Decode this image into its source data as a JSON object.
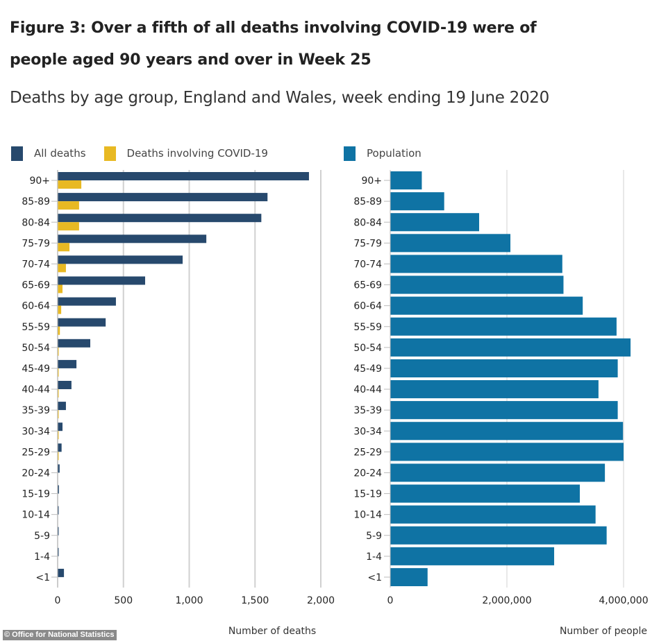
{
  "title_line1": "Figure 3: Over a fifth of all deaths involving COVID-19 were of",
  "title_line2": "people aged 90 years and over in Week 25",
  "subtitle": "Deaths by age group, England and Wales, week ending 19 June 2020",
  "footer": "© Office for National Statistics",
  "colors": {
    "all_deaths": "#27496d",
    "covid_deaths": "#e8b923",
    "population": "#0f73a4",
    "grid": "#d0d0d0"
  },
  "chart_data": [
    {
      "type": "bar",
      "orientation": "horizontal",
      "title": "Deaths by age group",
      "xlabel": "Number of deaths",
      "ylabel": "",
      "xlim": [
        0,
        2000
      ],
      "xticks": [
        0,
        500,
        1000,
        1500,
        2000
      ],
      "xtick_labels": [
        "0",
        "500",
        "1,000",
        "1,500",
        "2,000"
      ],
      "grid": true,
      "legend_position": "top-left",
      "categories": [
        "90+",
        "85-89",
        "80-84",
        "75-79",
        "70-74",
        "65-69",
        "60-64",
        "55-59",
        "50-54",
        "45-49",
        "40-44",
        "35-39",
        "30-34",
        "25-29",
        "20-24",
        "15-19",
        "10-14",
        "5-9",
        "1-4",
        "<1"
      ],
      "series": [
        {
          "name": "All deaths",
          "color": "#27496d",
          "values": [
            1910,
            1595,
            1548,
            1130,
            950,
            665,
            443,
            365,
            248,
            143,
            105,
            63,
            37,
            30,
            15,
            10,
            4,
            4,
            8,
            48
          ]
        },
        {
          "name": "Deaths involving COVID-19",
          "color": "#e8b923",
          "values": [
            180,
            163,
            163,
            90,
            63,
            37,
            27,
            17,
            8,
            4,
            3,
            2,
            1,
            1,
            0,
            0,
            0,
            0,
            0,
            0
          ]
        }
      ]
    },
    {
      "type": "bar",
      "orientation": "horizontal",
      "title": "Population by age group",
      "xlabel": "Number of people",
      "ylabel": "",
      "xlim": [
        0,
        4000000
      ],
      "xticks": [
        0,
        2000000,
        4000000
      ],
      "xtick_labels": [
        "0",
        "2,000,000",
        "4,000,000"
      ],
      "grid": true,
      "legend_position": "top-left",
      "categories": [
        "90+",
        "85-89",
        "80-84",
        "75-79",
        "70-74",
        "65-69",
        "60-64",
        "55-59",
        "50-54",
        "45-49",
        "40-44",
        "35-39",
        "30-34",
        "25-29",
        "20-24",
        "15-19",
        "10-14",
        "5-9",
        "1-4",
        "<1"
      ],
      "series": [
        {
          "name": "Population",
          "color": "#0f73a4",
          "values": [
            541000,
            925000,
            1524000,
            2060000,
            2950000,
            2970000,
            3300000,
            3880000,
            4120000,
            3900000,
            3570000,
            3900000,
            3990000,
            4000000,
            3680000,
            3250000,
            3520000,
            3710000,
            2810000,
            640000
          ]
        }
      ]
    }
  ]
}
